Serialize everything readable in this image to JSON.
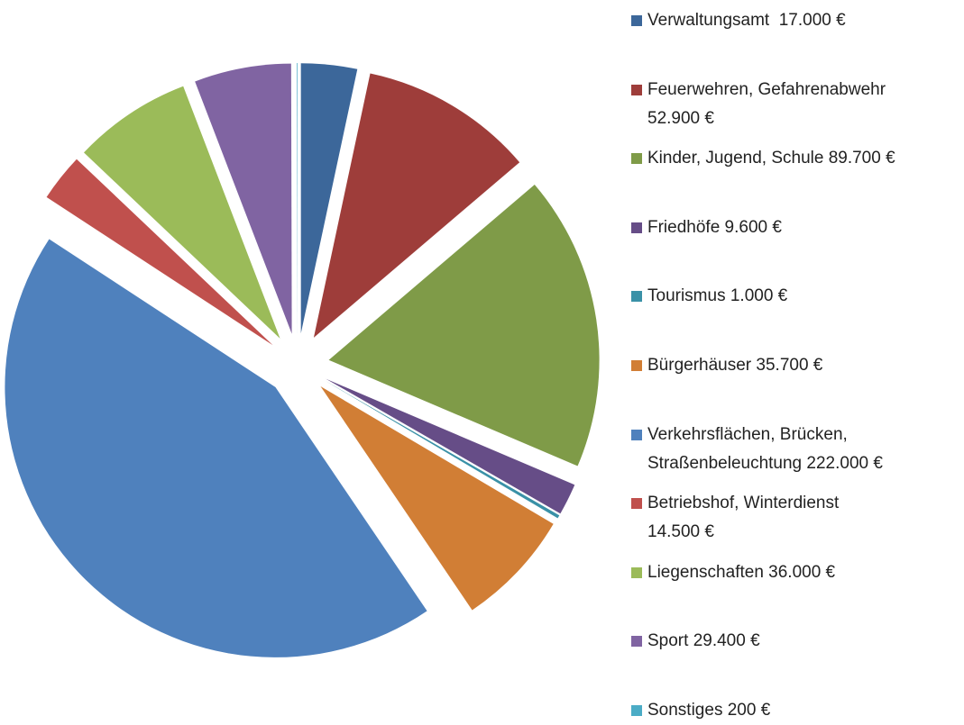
{
  "chart_data": {
    "type": "pie",
    "categories": [
      "Verwaltungsamt  17.000 €",
      "Feuerwehren, Gefahrenabwehr\n52.900 €",
      "Kinder, Jugend, Schule 89.700 €",
      "Friedhöfe 9.600 €",
      "Tourismus 1.000 €",
      "Bürgerhäuser 35.700 €",
      "Verkehrsflächen, Brücken,\nStraßenbeleuchtung 222.000 €",
      "Betriebshof, Winterdienst\n14.500 €",
      "Liegenschaften 36.000 €",
      "Sport 29.400 €",
      "Sonstiges 200 €"
    ],
    "values": [
      17000,
      52900,
      89700,
      9600,
      1000,
      35700,
      222000,
      14500,
      36000,
      29400,
      200
    ],
    "colors": [
      "#3c679a",
      "#9e3d3a",
      "#7f9b48",
      "#664d87",
      "#3a91a7",
      "#d17e35",
      "#4f81bd",
      "#c0504d",
      "#9bbb59",
      "#8064a2",
      "#4bacc6"
    ],
    "legend": "right"
  }
}
